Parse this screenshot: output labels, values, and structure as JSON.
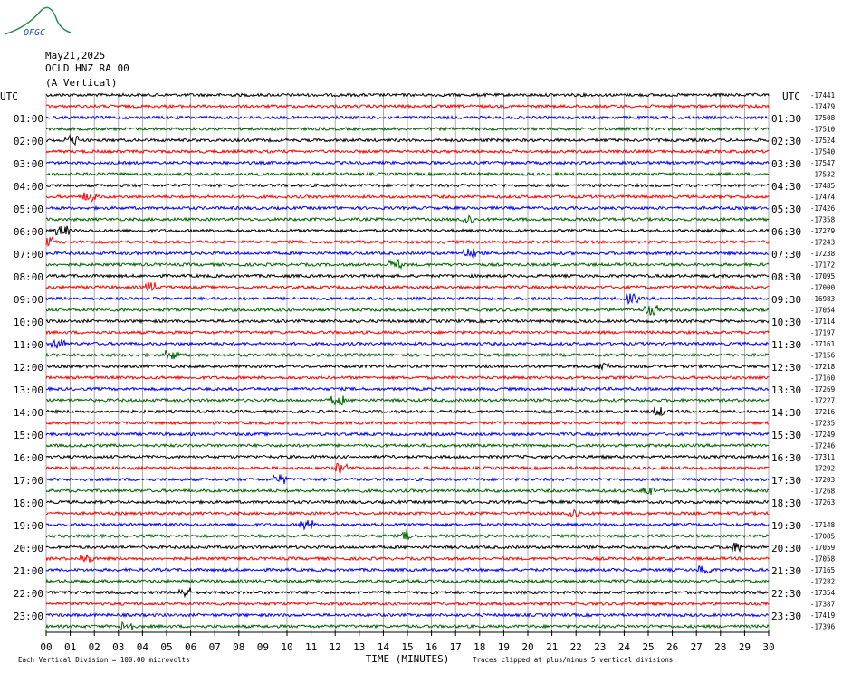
{
  "logo": "OFGC",
  "chart_data": {
    "type": "helicorder",
    "title_lines": [
      "May21,2025",
      "OCLD HNZ RA 00",
      "(A Vertical)"
    ],
    "left_labels": [
      "UTC",
      null,
      "01:00",
      null,
      "02:00",
      null,
      "03:00",
      null,
      "04:00",
      null,
      "05:00",
      null,
      "06:00",
      null,
      "07:00",
      null,
      "08:00",
      null,
      "09:00",
      null,
      "10:00",
      null,
      "11:00",
      null,
      "12:00",
      null,
      "13:00",
      null,
      "14:00",
      null,
      "15:00",
      null,
      "16:00",
      null,
      "17:00",
      null,
      "18:00",
      null,
      "19:00",
      null,
      "20:00",
      null,
      "21:00",
      null,
      "22:00",
      null,
      "23:00",
      null
    ],
    "right_labels": [
      "UTC",
      null,
      "01:30",
      null,
      "02:30",
      null,
      "03:30",
      null,
      "04:30",
      null,
      "05:30",
      null,
      "06:30",
      null,
      "07:30",
      null,
      "08:30",
      null,
      "09:30",
      null,
      "10:30",
      null,
      "11:30",
      null,
      "12:30",
      null,
      "13:30",
      null,
      "14:30",
      null,
      "15:30",
      null,
      "16:30",
      null,
      "17:30",
      null,
      "18:30",
      null,
      "19:30",
      null,
      "20:30",
      null,
      "21:30",
      null,
      "22:30",
      null,
      "23:30",
      null
    ],
    "values": [
      -17441,
      -17479,
      -17508,
      -17510,
      -17524,
      -17540,
      -17547,
      -17532,
      -17485,
      -17474,
      -17426,
      -17358,
      -17279,
      -17243,
      -17238,
      -17172,
      -17095,
      -17000,
      -16983,
      -17054,
      -17114,
      -17197,
      -17161,
      -17156,
      -17218,
      -17160,
      -17269,
      -17227,
      -17216,
      -17235,
      -17249,
      -17246,
      -17311,
      -17292,
      -17203,
      -17268,
      -17263,
      null,
      -17148,
      -17085,
      -17059,
      -17058,
      -17165,
      -17282,
      -17354,
      -17387,
      -17419,
      -17396
    ],
    "colors": [
      "#000000",
      "#ff0000",
      "#0000ff",
      "#006400"
    ],
    "xlabel": "TIME (MINUTES)",
    "xlim": [
      0,
      30
    ],
    "xticks": [
      {
        "value": 0,
        "label": "00"
      },
      {
        "value": 1,
        "label": "01"
      },
      {
        "value": 2,
        "label": "02"
      },
      {
        "value": 3,
        "label": "03"
      },
      {
        "value": 4,
        "label": "04"
      },
      {
        "value": 5,
        "label": "05"
      },
      {
        "value": 6,
        "label": "06"
      },
      {
        "value": 7,
        "label": "07"
      },
      {
        "value": 8,
        "label": "08"
      },
      {
        "value": 9,
        "label": "09"
      },
      10,
      11,
      12,
      13,
      14,
      15,
      16,
      17,
      18,
      19,
      20,
      21,
      22,
      23,
      24,
      25,
      26,
      27,
      28,
      29,
      30
    ],
    "grid": true,
    "footer_left": "Each Vertical Division =  100.00 microvolts",
    "footer_right": "Traces clipped at plus/minus 5 vertical divisions"
  }
}
